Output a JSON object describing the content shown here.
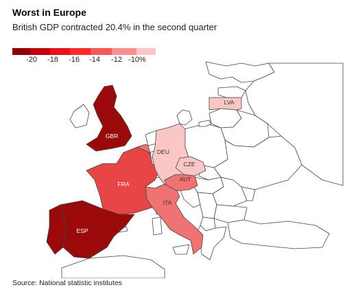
{
  "title": "Worst in Europe",
  "subtitle": "British GDP contracted 20.4% in the second quarter",
  "legend": {
    "colors": [
      "#8b0000",
      "#c0000f",
      "#e8121c",
      "#ff2a2a",
      "#f25a5a",
      "#f78f8f",
      "#fbc6c6"
    ],
    "ticks": [
      "-20",
      "-18",
      "-16",
      "-14",
      "-12",
      "-10%"
    ]
  },
  "colors": {
    "no_data": "#ffffff",
    "border": "#444444",
    "label_dark": "#ffffff",
    "label_light": "#333333"
  },
  "countries": [
    {
      "code": "GBR",
      "color": "#9a0a0a"
    },
    {
      "code": "ESP",
      "color": "#9a0a0a"
    },
    {
      "code": "FRA",
      "color": "#e84545"
    },
    {
      "code": "ITA",
      "color": "#f07373"
    },
    {
      "code": "AUT",
      "color": "#f07373"
    },
    {
      "code": "DEU",
      "color": "#fbc6c6"
    },
    {
      "code": "CZE",
      "color": "#fbc6c6"
    },
    {
      "code": "LVA",
      "color": "#fbc6c6"
    },
    {
      "code": "PRT",
      "color": "#9a0a0a"
    },
    {
      "code": "BEL",
      "color": "#f07373"
    }
  ],
  "source": "Source: National statistic institutes"
}
